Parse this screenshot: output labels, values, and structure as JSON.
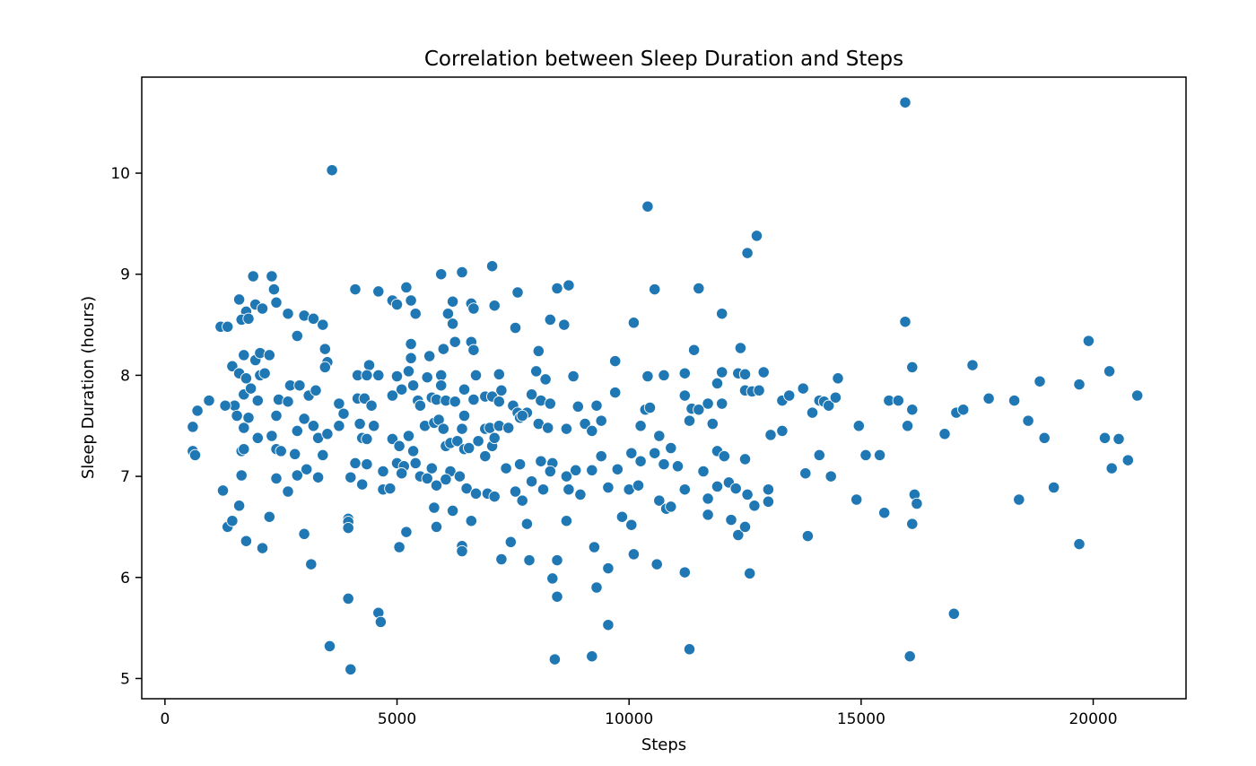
{
  "chart_data": {
    "type": "scatter",
    "title": "Correlation between Sleep Duration and Steps",
    "xlabel": "Steps",
    "ylabel": "Sleep Duration (hours)",
    "xlim": [
      -500,
      22000
    ],
    "ylim": [
      4.8,
      10.95
    ],
    "xticks": [
      0,
      5000,
      10000,
      15000,
      20000
    ],
    "xtick_labels": [
      "0",
      "5000",
      "10000",
      "15000",
      "20000"
    ],
    "yticks": [
      5,
      6,
      7,
      8,
      9,
      10
    ],
    "ytick_labels": [
      "5",
      "6",
      "7",
      "8",
      "9",
      "10"
    ],
    "grid": false,
    "legend": false,
    "color": "#1f77b4",
    "points": [
      [
        3600,
        10.03
      ],
      [
        15950,
        10.7
      ],
      [
        10400,
        9.67
      ],
      [
        12550,
        9.21
      ],
      [
        12750,
        9.38
      ],
      [
        1900,
        8.98
      ],
      [
        2300,
        8.98
      ],
      [
        5950,
        9.0
      ],
      [
        6400,
        9.02
      ],
      [
        7050,
        9.08
      ],
      [
        8700,
        8.89
      ],
      [
        5200,
        8.87
      ],
      [
        4100,
        8.85
      ],
      [
        4600,
        8.83
      ],
      [
        7600,
        8.82
      ],
      [
        10550,
        8.85
      ],
      [
        11500,
        8.86
      ],
      [
        8450,
        8.86
      ],
      [
        1200,
        8.48
      ],
      [
        1350,
        8.48
      ],
      [
        1600,
        8.75
      ],
      [
        1750,
        8.63
      ],
      [
        1950,
        8.7
      ],
      [
        2100,
        8.66
      ],
      [
        2350,
        8.85
      ],
      [
        2400,
        8.72
      ],
      [
        2650,
        8.61
      ],
      [
        3000,
        8.59
      ],
      [
        3200,
        8.56
      ],
      [
        3400,
        8.5
      ],
      [
        4900,
        8.74
      ],
      [
        5000,
        8.7
      ],
      [
        5300,
        8.74
      ],
      [
        5400,
        8.61
      ],
      [
        6100,
        8.61
      ],
      [
        6200,
        8.73
      ],
      [
        6600,
        8.71
      ],
      [
        6650,
        8.66
      ],
      [
        7100,
        8.69
      ],
      [
        7550,
        8.47
      ],
      [
        8300,
        8.55
      ],
      [
        8600,
        8.5
      ],
      [
        10100,
        8.52
      ],
      [
        12000,
        8.61
      ],
      [
        15950,
        8.53
      ],
      [
        1650,
        8.55
      ],
      [
        1800,
        8.56
      ],
      [
        6200,
        8.51
      ],
      [
        1700,
        8.2
      ],
      [
        1950,
        8.15
      ],
      [
        2050,
        8.22
      ],
      [
        2250,
        8.2
      ],
      [
        2850,
        8.39
      ],
      [
        3450,
        8.26
      ],
      [
        3500,
        8.13
      ],
      [
        3450,
        8.08
      ],
      [
        4400,
        8.1
      ],
      [
        5300,
        8.31
      ],
      [
        5300,
        8.17
      ],
      [
        5700,
        8.19
      ],
      [
        6000,
        8.26
      ],
      [
        6250,
        8.33
      ],
      [
        6600,
        8.33
      ],
      [
        6650,
        8.25
      ],
      [
        8050,
        8.24
      ],
      [
        9700,
        8.14
      ],
      [
        11400,
        8.25
      ],
      [
        12400,
        8.27
      ],
      [
        19900,
        8.34
      ],
      [
        1450,
        8.09
      ],
      [
        1600,
        8.02
      ],
      [
        1750,
        7.97
      ],
      [
        2050,
        8.0
      ],
      [
        2150,
        8.02
      ],
      [
        4150,
        8.0
      ],
      [
        4350,
        8.0
      ],
      [
        4600,
        8.0
      ],
      [
        5000,
        7.99
      ],
      [
        5250,
        8.04
      ],
      [
        5650,
        7.98
      ],
      [
        5950,
        8.0
      ],
      [
        6700,
        8.0
      ],
      [
        7200,
        8.01
      ],
      [
        8000,
        8.04
      ],
      [
        8200,
        7.96
      ],
      [
        8800,
        7.99
      ],
      [
        10400,
        7.99
      ],
      [
        10750,
        8.0
      ],
      [
        11200,
        8.02
      ],
      [
        12000,
        8.03
      ],
      [
        12350,
        8.02
      ],
      [
        12500,
        8.01
      ],
      [
        12900,
        8.03
      ],
      [
        14500,
        7.97
      ],
      [
        16100,
        8.08
      ],
      [
        17400,
        8.1
      ],
      [
        20350,
        8.04
      ],
      [
        18850,
        7.94
      ],
      [
        19700,
        7.91
      ],
      [
        1500,
        7.7
      ],
      [
        1700,
        7.81
      ],
      [
        1850,
        7.87
      ],
      [
        2000,
        7.75
      ],
      [
        2450,
        7.76
      ],
      [
        2650,
        7.74
      ],
      [
        2700,
        7.9
      ],
      [
        2900,
        7.9
      ],
      [
        3100,
        7.8
      ],
      [
        3250,
        7.85
      ],
      [
        3750,
        7.72
      ],
      [
        3850,
        7.62
      ],
      [
        4150,
        7.77
      ],
      [
        4300,
        7.77
      ],
      [
        4450,
        7.7
      ],
      [
        4900,
        7.8
      ],
      [
        5100,
        7.86
      ],
      [
        5350,
        7.9
      ],
      [
        5450,
        7.75
      ],
      [
        5500,
        7.7
      ],
      [
        5750,
        7.78
      ],
      [
        5850,
        7.76
      ],
      [
        5950,
        7.9
      ],
      [
        6050,
        7.75
      ],
      [
        6250,
        7.74
      ],
      [
        6450,
        7.86
      ],
      [
        6650,
        7.76
      ],
      [
        6900,
        7.79
      ],
      [
        7050,
        7.79
      ],
      [
        7200,
        7.74
      ],
      [
        7250,
        7.85
      ],
      [
        7500,
        7.7
      ],
      [
        7600,
        7.63
      ],
      [
        7800,
        7.63
      ],
      [
        7900,
        7.81
      ],
      [
        8100,
        7.75
      ],
      [
        8300,
        7.72
      ],
      [
        8900,
        7.69
      ],
      [
        9300,
        7.7
      ],
      [
        9700,
        7.83
      ],
      [
        10350,
        7.66
      ],
      [
        10450,
        7.68
      ],
      [
        11200,
        7.8
      ],
      [
        11350,
        7.67
      ],
      [
        11500,
        7.66
      ],
      [
        11700,
        7.72
      ],
      [
        11800,
        7.52
      ],
      [
        12000,
        7.72
      ],
      [
        12500,
        7.85
      ],
      [
        12650,
        7.84
      ],
      [
        12800,
        7.85
      ],
      [
        13300,
        7.75
      ],
      [
        13450,
        7.8
      ],
      [
        13750,
        7.87
      ],
      [
        13950,
        7.63
      ],
      [
        14100,
        7.75
      ],
      [
        14200,
        7.74
      ],
      [
        14300,
        7.7
      ],
      [
        14450,
        7.78
      ],
      [
        15600,
        7.75
      ],
      [
        15800,
        7.75
      ],
      [
        16100,
        7.66
      ],
      [
        17050,
        7.63
      ],
      [
        17200,
        7.66
      ],
      [
        17750,
        7.77
      ],
      [
        18300,
        7.75
      ],
      [
        18600,
        7.55
      ],
      [
        20950,
        7.8
      ],
      [
        11900,
        7.92
      ],
      [
        600,
        7.49
      ],
      [
        700,
        7.65
      ],
      [
        950,
        7.75
      ],
      [
        1300,
        7.7
      ],
      [
        1550,
        7.6
      ],
      [
        1700,
        7.48
      ],
      [
        1800,
        7.58
      ],
      [
        2000,
        7.38
      ],
      [
        2300,
        7.4
      ],
      [
        2400,
        7.6
      ],
      [
        2850,
        7.45
      ],
      [
        3000,
        7.57
      ],
      [
        3200,
        7.5
      ],
      [
        3300,
        7.38
      ],
      [
        3500,
        7.42
      ],
      [
        3750,
        7.5
      ],
      [
        4200,
        7.52
      ],
      [
        4250,
        7.38
      ],
      [
        4350,
        7.37
      ],
      [
        4500,
        7.5
      ],
      [
        4900,
        7.37
      ],
      [
        5050,
        7.3
      ],
      [
        5250,
        7.4
      ],
      [
        5350,
        7.25
      ],
      [
        5600,
        7.5
      ],
      [
        5800,
        7.53
      ],
      [
        5900,
        7.56
      ],
      [
        6000,
        7.47
      ],
      [
        6050,
        7.3
      ],
      [
        6150,
        7.33
      ],
      [
        6300,
        7.35
      ],
      [
        6400,
        7.47
      ],
      [
        6450,
        7.6
      ],
      [
        6750,
        7.35
      ],
      [
        6900,
        7.47
      ],
      [
        7000,
        7.48
      ],
      [
        7050,
        7.3
      ],
      [
        7200,
        7.5
      ],
      [
        7400,
        7.48
      ],
      [
        7650,
        7.58
      ],
      [
        7700,
        7.6
      ],
      [
        8050,
        7.52
      ],
      [
        8250,
        7.48
      ],
      [
        8650,
        7.47
      ],
      [
        9050,
        7.52
      ],
      [
        9200,
        7.45
      ],
      [
        9400,
        7.55
      ],
      [
        10250,
        7.5
      ],
      [
        10650,
        7.4
      ],
      [
        10900,
        7.28
      ],
      [
        11300,
        7.55
      ],
      [
        13050,
        7.41
      ],
      [
        13300,
        7.45
      ],
      [
        14950,
        7.5
      ],
      [
        16000,
        7.5
      ],
      [
        16800,
        7.42
      ],
      [
        18950,
        7.38
      ],
      [
        20250,
        7.38
      ],
      [
        20550,
        7.37
      ],
      [
        600,
        7.25
      ],
      [
        650,
        7.21
      ],
      [
        1650,
        7.25
      ],
      [
        1700,
        7.27
      ],
      [
        2400,
        7.27
      ],
      [
        2500,
        7.25
      ],
      [
        2800,
        7.22
      ],
      [
        3400,
        7.21
      ],
      [
        4100,
        7.13
      ],
      [
        4350,
        7.12
      ],
      [
        4700,
        7.05
      ],
      [
        5000,
        7.13
      ],
      [
        5150,
        7.1
      ],
      [
        5400,
        7.13
      ],
      [
        5750,
        7.08
      ],
      [
        6150,
        7.05
      ],
      [
        6450,
        7.27
      ],
      [
        6550,
        7.28
      ],
      [
        6900,
        7.2
      ],
      [
        7100,
        7.38
      ],
      [
        7350,
        7.08
      ],
      [
        7650,
        7.12
      ],
      [
        8100,
        7.15
      ],
      [
        8350,
        7.13
      ],
      [
        8850,
        7.06
      ],
      [
        9200,
        7.06
      ],
      [
        9400,
        7.2
      ],
      [
        9750,
        7.07
      ],
      [
        10050,
        7.23
      ],
      [
        10250,
        7.15
      ],
      [
        10550,
        7.23
      ],
      [
        10750,
        7.12
      ],
      [
        11050,
        7.1
      ],
      [
        11600,
        7.05
      ],
      [
        11900,
        7.25
      ],
      [
        12050,
        7.2
      ],
      [
        12500,
        7.17
      ],
      [
        14100,
        7.21
      ],
      [
        15100,
        7.21
      ],
      [
        15400,
        7.21
      ],
      [
        20750,
        7.16
      ],
      [
        20400,
        7.08
      ],
      [
        13800,
        7.03
      ],
      [
        14350,
        7.0
      ],
      [
        1250,
        6.86
      ],
      [
        1650,
        7.01
      ],
      [
        2400,
        6.98
      ],
      [
        2650,
        6.85
      ],
      [
        2850,
        7.01
      ],
      [
        3050,
        7.07
      ],
      [
        3300,
        6.99
      ],
      [
        4000,
        6.99
      ],
      [
        4250,
        6.92
      ],
      [
        4700,
        6.87
      ],
      [
        4850,
        6.88
      ],
      [
        5100,
        7.03
      ],
      [
        5500,
        7.0
      ],
      [
        5650,
        6.98
      ],
      [
        5850,
        6.91
      ],
      [
        6050,
        6.97
      ],
      [
        6350,
        7.0
      ],
      [
        6500,
        6.88
      ],
      [
        6700,
        6.83
      ],
      [
        6950,
        6.83
      ],
      [
        7100,
        6.8
      ],
      [
        7550,
        6.85
      ],
      [
        7700,
        6.76
      ],
      [
        7900,
        6.95
      ],
      [
        8150,
        6.87
      ],
      [
        8300,
        7.05
      ],
      [
        8650,
        7.0
      ],
      [
        8700,
        6.87
      ],
      [
        8950,
        6.82
      ],
      [
        9550,
        6.89
      ],
      [
        9850,
        6.6
      ],
      [
        10000,
        6.87
      ],
      [
        10200,
        6.91
      ],
      [
        10650,
        6.76
      ],
      [
        10800,
        6.68
      ],
      [
        10900,
        6.7
      ],
      [
        11200,
        6.87
      ],
      [
        11700,
        6.78
      ],
      [
        11900,
        6.9
      ],
      [
        12150,
        6.94
      ],
      [
        12300,
        6.88
      ],
      [
        12550,
        6.82
      ],
      [
        12700,
        6.71
      ],
      [
        13000,
        6.87
      ],
      [
        13000,
        6.75
      ],
      [
        14900,
        6.77
      ],
      [
        16150,
        6.82
      ],
      [
        16200,
        6.73
      ],
      [
        18400,
        6.77
      ],
      [
        19150,
        6.89
      ],
      [
        1350,
        6.5
      ],
      [
        1450,
        6.56
      ],
      [
        1600,
        6.71
      ],
      [
        1750,
        6.36
      ],
      [
        2100,
        6.29
      ],
      [
        2250,
        6.6
      ],
      [
        3000,
        6.43
      ],
      [
        3950,
        6.58
      ],
      [
        3950,
        6.55
      ],
      [
        3950,
        6.49
      ],
      [
        5200,
        6.45
      ],
      [
        5800,
        6.69
      ],
      [
        5850,
        6.5
      ],
      [
        6200,
        6.66
      ],
      [
        6600,
        6.56
      ],
      [
        7450,
        6.35
      ],
      [
        7800,
        6.53
      ],
      [
        8650,
        6.56
      ],
      [
        10050,
        6.52
      ],
      [
        11700,
        6.62
      ],
      [
        12200,
        6.57
      ],
      [
        12350,
        6.42
      ],
      [
        12500,
        6.5
      ],
      [
        13850,
        6.41
      ],
      [
        15500,
        6.64
      ],
      [
        16100,
        6.53
      ],
      [
        19700,
        6.33
      ],
      [
        5050,
        6.3
      ],
      [
        6400,
        6.31
      ],
      [
        6400,
        6.26
      ],
      [
        7250,
        6.18
      ],
      [
        7850,
        6.17
      ],
      [
        8450,
        6.17
      ],
      [
        9250,
        6.3
      ],
      [
        10100,
        6.23
      ],
      [
        10600,
        6.13
      ],
      [
        3150,
        6.13
      ],
      [
        8350,
        5.99
      ],
      [
        9550,
        6.09
      ],
      [
        11200,
        6.05
      ],
      [
        12600,
        6.04
      ],
      [
        9300,
        5.9
      ],
      [
        8450,
        5.81
      ],
      [
        3950,
        5.79
      ],
      [
        4600,
        5.65
      ],
      [
        4650,
        5.56
      ],
      [
        9550,
        5.53
      ],
      [
        17000,
        5.64
      ],
      [
        3550,
        5.32
      ],
      [
        11300,
        5.29
      ],
      [
        8400,
        5.19
      ],
      [
        9200,
        5.22
      ],
      [
        16050,
        5.22
      ],
      [
        4000,
        5.09
      ]
    ]
  }
}
